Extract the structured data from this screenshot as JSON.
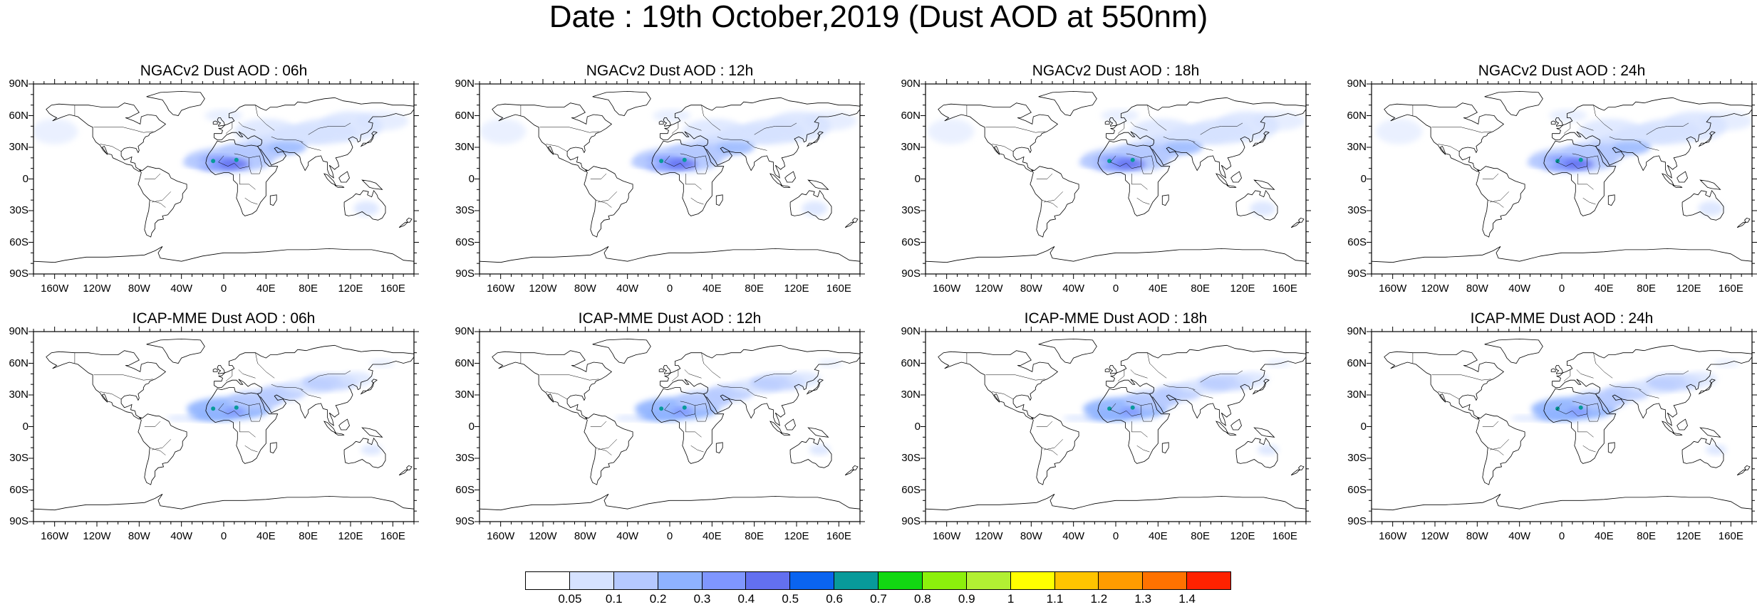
{
  "title": "Date : 19th October,2019 (Dust AOD at 550nm)",
  "lat_labels": [
    "90N",
    "60N",
    "30N",
    "0",
    "30S",
    "60S",
    "90S"
  ],
  "lon_labels": [
    "160W",
    "120W",
    "80W",
    "40W",
    "0",
    "40E",
    "80E",
    "120E",
    "160E"
  ],
  "panels": [
    {
      "title": "NGACv2 Dust AOD : 06h"
    },
    {
      "title": "NGACv2 Dust AOD : 12h"
    },
    {
      "title": "NGACv2 Dust AOD : 18h"
    },
    {
      "title": "NGACv2 Dust AOD : 24h"
    },
    {
      "title": "ICAP-MME Dust AOD : 06h"
    },
    {
      "title": "ICAP-MME Dust AOD : 12h"
    },
    {
      "title": "ICAP-MME Dust AOD : 18h"
    },
    {
      "title": "ICAP-MME Dust AOD : 24h"
    }
  ],
  "colorbar": {
    "labels": [
      "0.05",
      "0.1",
      "0.2",
      "0.3",
      "0.4",
      "0.5",
      "0.6",
      "0.7",
      "0.8",
      "0.9",
      "1",
      "1.1",
      "1.2",
      "1.3",
      "1.4"
    ],
    "colors": [
      "#ffffff",
      "#d6e2ff",
      "#b5c9ff",
      "#8eb2ff",
      "#7f96ff",
      "#6370f0",
      "#0a64f0",
      "#089a9a",
      "#12d812",
      "#8cf00c",
      "#b2f033",
      "#ffff00",
      "#ffc400",
      "#ff9c00",
      "#ff7200",
      "#ff2200"
    ]
  }
}
